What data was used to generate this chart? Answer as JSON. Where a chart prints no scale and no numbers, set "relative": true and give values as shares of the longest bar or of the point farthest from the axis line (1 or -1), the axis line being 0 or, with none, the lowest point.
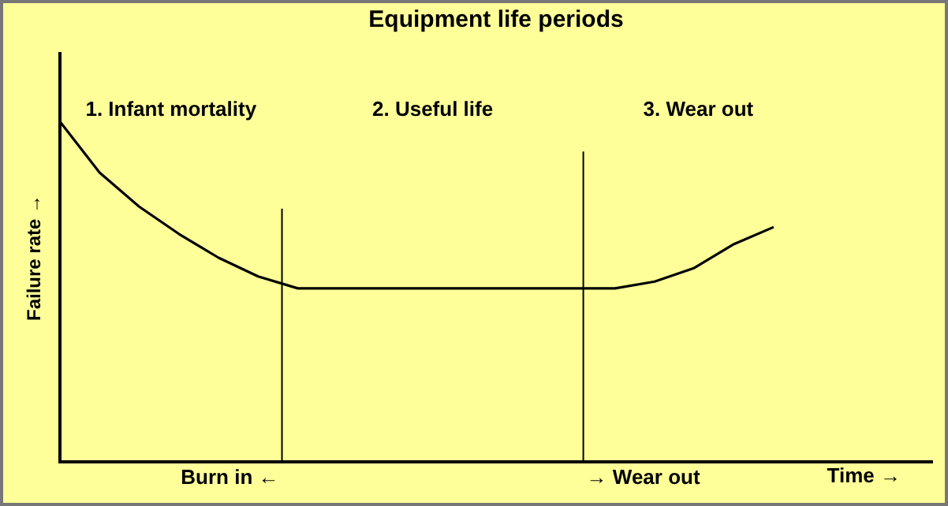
{
  "chart_data": {
    "type": "line",
    "title": "Equipment life periods",
    "xlabel": "Time →",
    "ylabel": "Failure rate →",
    "relative": true,
    "marker": "none",
    "line_style": "solid",
    "tick_labels": false,
    "categories": [
      null,
      null,
      null,
      null,
      null,
      null,
      null,
      null,
      null,
      null,
      null,
      null,
      null,
      null,
      null,
      null,
      null,
      null,
      null,
      null,
      null,
      null,
      null
    ],
    "series": [
      {
        "color": "#000000",
        "values": [
          1.0,
          0.85,
          0.75,
          0.67,
          0.6,
          0.545,
          0.51,
          0.51,
          0.51,
          0.51,
          0.51,
          0.51,
          0.51,
          0.51,
          0.51,
          0.53,
          0.57,
          0.64,
          0.69,
          null,
          null,
          null,
          null
        ]
      }
    ],
    "annotations": [
      "1. Infant mortality",
      "2. Useful life",
      "3. Wear out",
      "Burn in ←",
      "→ Wear out"
    ]
  }
}
